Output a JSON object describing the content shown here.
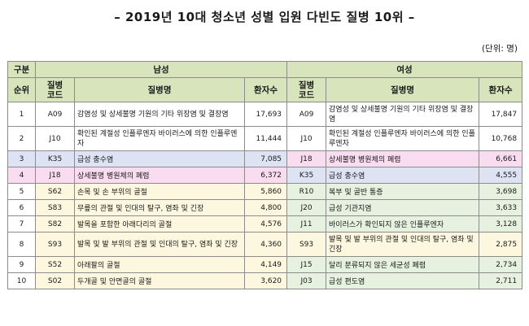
{
  "title": "– 2019년 10대 청소년 성별 입원 다빈도 질병 10위 –",
  "unit": "(단위: 명)",
  "headers": {
    "category": "구분",
    "male": "남성",
    "female": "여성",
    "rank": "순위",
    "code": "질병\n코드",
    "name": "질병명",
    "patients": "환자수"
  },
  "colors": {
    "header": "#d8e4bc",
    "K35": "#dde3f3",
    "J18": "#f9dcf0",
    "male_highlight": "#fdf7df",
    "female_highlight": "#e6f2df"
  },
  "rows": [
    {
      "rank": "1",
      "m_code": "A09",
      "m_name": "감염성 및 상세불명 기원의 기타 위장염 및 결장염",
      "m_count": "17,693",
      "f_code": "A09",
      "f_name": "감염성 및 상세불명 기원의 기타 위장염 및 결장염",
      "f_count": "17,847"
    },
    {
      "rank": "2",
      "m_code": "J10",
      "m_name": "확인된 계절성 인플루엔자 바이러스에 의한 인플루엔자",
      "m_count": "11,444",
      "f_code": "J10",
      "f_name": "확인된 계절성 인플루엔자 바이러스에 의한 인플루엔자",
      "f_count": "10,768"
    },
    {
      "rank": "3",
      "m_code": "K35",
      "m_name": "급성 충수염",
      "m_count": "7,085",
      "f_code": "J18",
      "f_name": "상세불명 병원체의 폐렴",
      "f_count": "6,661"
    },
    {
      "rank": "4",
      "m_code": "J18",
      "m_name": "상세불명 병원체의 폐렴",
      "m_count": "6,372",
      "f_code": "K35",
      "f_name": "급성 충수염",
      "f_count": "4,555"
    },
    {
      "rank": "5",
      "m_code": "S62",
      "m_name": "손목 및 손 부위의 골절",
      "m_count": "5,860",
      "f_code": "R10",
      "f_name": "복부 및 골반 통증",
      "f_count": "3,698"
    },
    {
      "rank": "6",
      "m_code": "S83",
      "m_name": "무릎의 관절 및 인대의 탈구, 염좌 및 긴장",
      "m_count": "4,800",
      "f_code": "J20",
      "f_name": "급성 기관지염",
      "f_count": "3,633"
    },
    {
      "rank": "7",
      "m_code": "S82",
      "m_name": "발목을 포함한 아래다리의 골절",
      "m_count": "4,576",
      "f_code": "J11",
      "f_name": "바이러스가 확인되지 않은 인플루엔자",
      "f_count": "3,128"
    },
    {
      "rank": "8",
      "m_code": "S93",
      "m_name": "발목 및 발 부위의 관절 및 인대의 탈구, 염좌 및 긴장",
      "m_count": "4,360",
      "f_code": "S93",
      "f_name": "발목 및 발 부위의 관절 및 인대의 탈구, 염좌 및 긴장",
      "f_count": "2,875"
    },
    {
      "rank": "9",
      "m_code": "S52",
      "m_name": "아래팔의 골절",
      "m_count": "4,149",
      "f_code": "J15",
      "f_name": "달리 분류되지 않은 세균성 폐렴",
      "f_count": "2,734"
    },
    {
      "rank": "10",
      "m_code": "S02",
      "m_name": "두개골 및 안면골의 골절",
      "m_count": "3,620",
      "f_code": "J03",
      "f_name": "급성 편도염",
      "f_count": "2,711"
    }
  ]
}
